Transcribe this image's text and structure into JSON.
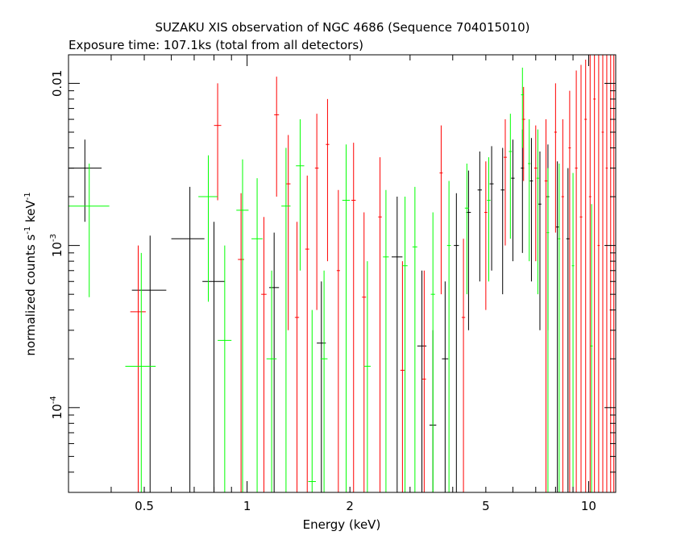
{
  "chart_data": {
    "type": "scatter",
    "title": "SUZAKU XIS observation of NGC 4686 (Sequence 704015010)",
    "subtitle": "Exposure time: 107.1ks (total from all detectors)",
    "xlabel": "Energy (keV)",
    "ylabel": "normalized counts s",
    "ylabel_sup1": "-1",
    "ylabel_mid": " keV",
    "ylabel_sup2": "-1",
    "xscale": "log",
    "yscale": "log",
    "xlim": [
      0.3,
      12
    ],
    "ylim": [
      3e-05,
      0.015
    ],
    "x_ticks": [
      {
        "value": 0.5,
        "label": "0.5"
      },
      {
        "value": 1,
        "label": "1"
      },
      {
        "value": 2,
        "label": "2"
      },
      {
        "value": 5,
        "label": "5"
      },
      {
        "value": 10,
        "label": "10"
      }
    ],
    "y_ticks": [
      {
        "value": 0.0001,
        "base": "10",
        "exp": "-4"
      },
      {
        "value": 0.001,
        "base": "10",
        "exp": "-3"
      },
      {
        "value": 0.01,
        "label": "0.01"
      }
    ],
    "colors": {
      "axes": "#000000",
      "black": "#000000",
      "red": "#ff0000",
      "green": "#00ff00"
    },
    "series": [
      {
        "color": "#000000",
        "points": [
          {
            "x": 0.335,
            "xlo": 0.3,
            "xhi": 0.375,
            "y": 0.003,
            "ylo": 0.0014,
            "yhi": 0.0045
          },
          {
            "x": 0.52,
            "xlo": 0.46,
            "xhi": 0.58,
            "y": 0.00053,
            "ylo": 3e-05,
            "yhi": 0.00115
          },
          {
            "x": 0.68,
            "xlo": 0.6,
            "xhi": 0.75,
            "y": 0.0011,
            "ylo": 3e-05,
            "yhi": 0.0023
          },
          {
            "x": 0.8,
            "xlo": 0.74,
            "xhi": 0.86,
            "y": 0.0006,
            "ylo": 3e-05,
            "yhi": 0.0014
          },
          {
            "x": 1.2,
            "xlo": 1.16,
            "xhi": 1.24,
            "y": 0.00055,
            "ylo": 3e-05,
            "yhi": 0.0012
          },
          {
            "x": 1.65,
            "xlo": 1.6,
            "xhi": 1.7,
            "y": 0.00025,
            "ylo": 3e-05,
            "yhi": 0.0006
          },
          {
            "x": 2.75,
            "xlo": 2.65,
            "xhi": 2.85,
            "y": 0.00085,
            "ylo": 3e-05,
            "yhi": 0.002
          },
          {
            "x": 3.25,
            "xlo": 3.15,
            "xhi": 3.35,
            "y": 0.00024,
            "ylo": 3e-05,
            "yhi": 0.0007
          },
          {
            "x": 3.5,
            "xlo": 3.42,
            "xhi": 3.58,
            "y": 7.8e-05,
            "ylo": 3e-05,
            "yhi": 0.0003
          },
          {
            "x": 3.8,
            "xlo": 3.72,
            "xhi": 3.88,
            "y": 0.0002,
            "ylo": 3e-05,
            "yhi": 0.0006
          },
          {
            "x": 4.1,
            "xlo": 4.03,
            "xhi": 4.17,
            "y": 0.001,
            "ylo": 3e-05,
            "yhi": 0.0021
          },
          {
            "x": 4.45,
            "xlo": 4.38,
            "xhi": 4.52,
            "y": 0.0016,
            "ylo": 0.0003,
            "yhi": 0.0029
          },
          {
            "x": 4.8,
            "xlo": 4.73,
            "xhi": 4.87,
            "y": 0.0022,
            "ylo": 0.0006,
            "yhi": 0.0038
          },
          {
            "x": 5.2,
            "xlo": 5.13,
            "xhi": 5.27,
            "y": 0.0024,
            "ylo": 0.0007,
            "yhi": 0.0041
          },
          {
            "x": 5.6,
            "xlo": 5.53,
            "xhi": 5.67,
            "y": 0.0022,
            "ylo": 0.0005,
            "yhi": 0.004
          },
          {
            "x": 6.0,
            "xlo": 5.93,
            "xhi": 6.07,
            "y": 0.0026,
            "ylo": 0.0008,
            "yhi": 0.0045
          },
          {
            "x": 6.4,
            "xlo": 6.33,
            "xhi": 6.47,
            "y": 0.003,
            "ylo": 0.0009,
            "yhi": 0.0052
          },
          {
            "x": 6.8,
            "xlo": 6.73,
            "xhi": 6.87,
            "y": 0.0025,
            "ylo": 0.0006,
            "yhi": 0.0046
          },
          {
            "x": 7.2,
            "xlo": 7.13,
            "xhi": 7.27,
            "y": 0.0018,
            "ylo": 0.0003,
            "yhi": 0.0038
          },
          {
            "x": 7.6,
            "xlo": 7.53,
            "xhi": 7.67,
            "y": 0.002,
            "ylo": 0.0003,
            "yhi": 0.0042
          },
          {
            "x": 8.1,
            "xlo": 8.02,
            "xhi": 8.18,
            "y": 0.0013,
            "ylo": 3e-05,
            "yhi": 0.0033
          },
          {
            "x": 8.7,
            "xlo": 8.6,
            "xhi": 8.8,
            "y": 0.0011,
            "ylo": 3e-05,
            "yhi": 0.003
          }
        ]
      },
      {
        "color": "#ff0000",
        "points": [
          {
            "x": 0.48,
            "xlo": 0.455,
            "xhi": 0.505,
            "y": 0.00039,
            "ylo": 3e-05,
            "yhi": 0.001
          },
          {
            "x": 0.82,
            "xlo": 0.8,
            "xhi": 0.84,
            "y": 0.0055,
            "ylo": 0.0019,
            "yhi": 0.01
          },
          {
            "x": 0.96,
            "xlo": 0.94,
            "xhi": 0.98,
            "y": 0.00082,
            "ylo": 3e-05,
            "yhi": 0.0021
          },
          {
            "x": 1.12,
            "xlo": 1.1,
            "xhi": 1.14,
            "y": 0.0005,
            "ylo": 3e-05,
            "yhi": 0.0015
          },
          {
            "x": 1.22,
            "xlo": 1.2,
            "xhi": 1.24,
            "y": 0.0064,
            "ylo": 0.002,
            "yhi": 0.011
          },
          {
            "x": 1.32,
            "xlo": 1.3,
            "xhi": 1.34,
            "y": 0.0024,
            "ylo": 0.0003,
            "yhi": 0.0048
          },
          {
            "x": 1.4,
            "xlo": 1.38,
            "xhi": 1.42,
            "y": 0.00036,
            "ylo": 3e-05,
            "yhi": 0.0014
          },
          {
            "x": 1.5,
            "xlo": 1.48,
            "xhi": 1.52,
            "y": 0.00095,
            "ylo": 3e-05,
            "yhi": 0.0027
          },
          {
            "x": 1.6,
            "xlo": 1.58,
            "xhi": 1.62,
            "y": 0.003,
            "ylo": 0.0004,
            "yhi": 0.0065
          },
          {
            "x": 1.72,
            "xlo": 1.7,
            "xhi": 1.74,
            "y": 0.0042,
            "ylo": 0.0008,
            "yhi": 0.008
          },
          {
            "x": 1.85,
            "xlo": 1.83,
            "xhi": 1.87,
            "y": 0.0007,
            "ylo": 3e-05,
            "yhi": 0.0022
          },
          {
            "x": 2.05,
            "xlo": 2.02,
            "xhi": 2.08,
            "y": 0.0019,
            "ylo": 3e-05,
            "yhi": 0.0043
          },
          {
            "x": 2.2,
            "xlo": 2.17,
            "xhi": 2.23,
            "y": 0.00048,
            "ylo": 3e-05,
            "yhi": 0.0016
          },
          {
            "x": 2.45,
            "xlo": 2.42,
            "xhi": 2.48,
            "y": 0.0015,
            "ylo": 3e-05,
            "yhi": 0.0035
          },
          {
            "x": 2.85,
            "xlo": 2.81,
            "xhi": 2.89,
            "y": 0.00017,
            "ylo": 3e-05,
            "yhi": 0.0008
          },
          {
            "x": 3.3,
            "xlo": 3.26,
            "xhi": 3.34,
            "y": 0.00015,
            "ylo": 3e-05,
            "yhi": 0.0007
          },
          {
            "x": 3.7,
            "xlo": 3.66,
            "xhi": 3.74,
            "y": 0.0028,
            "ylo": 0.0005,
            "yhi": 0.0055
          },
          {
            "x": 4.3,
            "xlo": 4.25,
            "xhi": 4.35,
            "y": 0.00036,
            "ylo": 3e-05,
            "yhi": 0.0011
          },
          {
            "x": 5.0,
            "xlo": 4.95,
            "xhi": 5.05,
            "y": 0.0016,
            "ylo": 0.0004,
            "yhi": 0.0033
          },
          {
            "x": 5.7,
            "xlo": 5.64,
            "xhi": 5.76,
            "y": 0.0035,
            "ylo": 0.001,
            "yhi": 0.006
          },
          {
            "x": 6.45,
            "xlo": 6.38,
            "xhi": 6.52,
            "y": 0.006,
            "ylo": 0.0025,
            "yhi": 0.0095
          },
          {
            "x": 7.0,
            "xlo": 6.93,
            "xhi": 7.07,
            "y": 0.003,
            "ylo": 0.0008,
            "yhi": 0.0055
          },
          {
            "x": 7.5,
            "xlo": 7.43,
            "xhi": 7.57,
            "y": 0.0025,
            "ylo": 3e-05,
            "yhi": 0.006
          },
          {
            "x": 8.0,
            "xlo": 7.93,
            "xhi": 8.07,
            "y": 0.005,
            "ylo": 0.0012,
            "yhi": 0.01
          },
          {
            "x": 8.4,
            "xlo": 8.33,
            "xhi": 8.47,
            "y": 0.002,
            "ylo": 3e-05,
            "yhi": 0.006
          },
          {
            "x": 8.8,
            "xlo": 8.73,
            "xhi": 8.87,
            "y": 0.004,
            "ylo": 3e-05,
            "yhi": 0.009
          },
          {
            "x": 9.2,
            "xlo": 9.12,
            "xhi": 9.28,
            "y": 0.003,
            "ylo": 3e-05,
            "yhi": 0.012
          },
          {
            "x": 9.5,
            "xlo": 9.42,
            "xhi": 9.58,
            "y": 0.0015,
            "ylo": 3e-05,
            "yhi": 0.013
          },
          {
            "x": 9.8,
            "xlo": 9.72,
            "xhi": 9.88,
            "y": 0.006,
            "ylo": 3e-05,
            "yhi": 0.014
          },
          {
            "x": 10.1,
            "xlo": 10.02,
            "xhi": 10.18,
            "y": 0.002,
            "ylo": 3e-05,
            "yhi": 0.015
          },
          {
            "x": 10.4,
            "xlo": 10.32,
            "xhi": 10.48,
            "y": 0.008,
            "ylo": 3e-05,
            "yhi": 0.015
          },
          {
            "x": 10.7,
            "xlo": 10.62,
            "xhi": 10.78,
            "y": 0.001,
            "ylo": 3e-05,
            "yhi": 0.015
          },
          {
            "x": 11.0,
            "xlo": 10.92,
            "xhi": 11.08,
            "y": 0.005,
            "ylo": 3e-05,
            "yhi": 0.015
          },
          {
            "x": 11.3,
            "xlo": 11.22,
            "xhi": 11.38,
            "y": 0.003,
            "ylo": 3e-05,
            "yhi": 0.015
          },
          {
            "x": 11.6,
            "xlo": 11.52,
            "xhi": 11.68,
            "y": 0.0004,
            "ylo": 3e-05,
            "yhi": 0.015
          },
          {
            "x": 11.85,
            "xlo": 11.78,
            "xhi": 11.92,
            "y": 0.007,
            "ylo": 3e-05,
            "yhi": 0.015
          }
        ]
      },
      {
        "color": "#00ff00",
        "points": [
          {
            "x": 0.345,
            "xlo": 0.3,
            "xhi": 0.395,
            "y": 0.00175,
            "ylo": 0.00048,
            "yhi": 0.0032
          },
          {
            "x": 0.49,
            "xlo": 0.44,
            "xhi": 0.54,
            "y": 0.00018,
            "ylo": 3e-05,
            "yhi": 0.0009
          },
          {
            "x": 0.77,
            "xlo": 0.72,
            "xhi": 0.82,
            "y": 0.002,
            "ylo": 0.00045,
            "yhi": 0.0036
          },
          {
            "x": 0.86,
            "xlo": 0.82,
            "xhi": 0.9,
            "y": 0.00026,
            "ylo": 3e-05,
            "yhi": 0.001
          },
          {
            "x": 0.97,
            "xlo": 0.93,
            "xhi": 1.01,
            "y": 0.00165,
            "ylo": 3e-05,
            "yhi": 0.0034
          },
          {
            "x": 1.07,
            "xlo": 1.03,
            "xhi": 1.11,
            "y": 0.0011,
            "ylo": 3e-05,
            "yhi": 0.0026
          },
          {
            "x": 1.18,
            "xlo": 1.14,
            "xhi": 1.22,
            "y": 0.0002,
            "ylo": 3e-05,
            "yhi": 0.0007
          },
          {
            "x": 1.3,
            "xlo": 1.26,
            "xhi": 1.34,
            "y": 0.00175,
            "ylo": 3e-05,
            "yhi": 0.004
          },
          {
            "x": 1.43,
            "xlo": 1.39,
            "xhi": 1.47,
            "y": 0.0031,
            "ylo": 0.0007,
            "yhi": 0.006
          },
          {
            "x": 1.55,
            "xlo": 1.51,
            "xhi": 1.59,
            "y": 3.5e-05,
            "ylo": 3e-05,
            "yhi": 0.0004
          },
          {
            "x": 1.68,
            "xlo": 1.64,
            "xhi": 1.72,
            "y": 0.0002,
            "ylo": 3e-05,
            "yhi": 0.0007
          },
          {
            "x": 1.95,
            "xlo": 1.9,
            "xhi": 2.0,
            "y": 0.0019,
            "ylo": 3e-05,
            "yhi": 0.0042
          },
          {
            "x": 2.25,
            "xlo": 2.2,
            "xhi": 2.3,
            "y": 0.00018,
            "ylo": 3e-05,
            "yhi": 0.0008
          },
          {
            "x": 2.55,
            "xlo": 2.5,
            "xhi": 2.6,
            "y": 0.00085,
            "ylo": 3e-05,
            "yhi": 0.0022
          },
          {
            "x": 2.9,
            "xlo": 2.85,
            "xhi": 2.95,
            "y": 0.00075,
            "ylo": 3e-05,
            "yhi": 0.002
          },
          {
            "x": 3.1,
            "xlo": 3.05,
            "xhi": 3.15,
            "y": 0.00098,
            "ylo": 3e-05,
            "yhi": 0.0023
          },
          {
            "x": 3.5,
            "xlo": 3.45,
            "xhi": 3.55,
            "y": 0.0005,
            "ylo": 3e-05,
            "yhi": 0.0016
          },
          {
            "x": 3.9,
            "xlo": 3.85,
            "xhi": 3.95,
            "y": 0.001,
            "ylo": 3e-05,
            "yhi": 0.0025
          },
          {
            "x": 4.4,
            "xlo": 4.34,
            "xhi": 4.46,
            "y": 0.0017,
            "ylo": 0.0005,
            "yhi": 0.0032
          },
          {
            "x": 5.1,
            "xlo": 5.04,
            "xhi": 5.16,
            "y": 0.0019,
            "ylo": 0.0006,
            "yhi": 0.0035
          },
          {
            "x": 5.9,
            "xlo": 5.84,
            "xhi": 5.96,
            "y": 0.0038,
            "ylo": 0.0011,
            "yhi": 0.0065
          },
          {
            "x": 6.4,
            "xlo": 6.34,
            "xhi": 6.46,
            "y": 0.0085,
            "ylo": 0.004,
            "yhi": 0.0125
          },
          {
            "x": 6.7,
            "xlo": 6.64,
            "xhi": 6.76,
            "y": 0.0032,
            "ylo": 0.0008,
            "yhi": 0.006
          },
          {
            "x": 7.1,
            "xlo": 7.04,
            "xhi": 7.16,
            "y": 0.0026,
            "ylo": 0.0005,
            "yhi": 0.0052
          },
          {
            "x": 7.6,
            "xlo": 7.54,
            "xhi": 7.66,
            "y": 0.0012,
            "ylo": 3e-05,
            "yhi": 0.003
          },
          {
            "x": 8.2,
            "xlo": 8.14,
            "xhi": 8.26,
            "y": 0.0011,
            "ylo": 3e-05,
            "yhi": 0.0032
          },
          {
            "x": 9.0,
            "xlo": 8.93,
            "xhi": 9.07,
            "y": 0.00075,
            "ylo": 3e-05,
            "yhi": 0.0028
          },
          {
            "x": 10.2,
            "xlo": 10.12,
            "xhi": 10.28,
            "y": 0.00024,
            "ylo": 3e-05,
            "yhi": 0.0018
          }
        ]
      }
    ]
  }
}
